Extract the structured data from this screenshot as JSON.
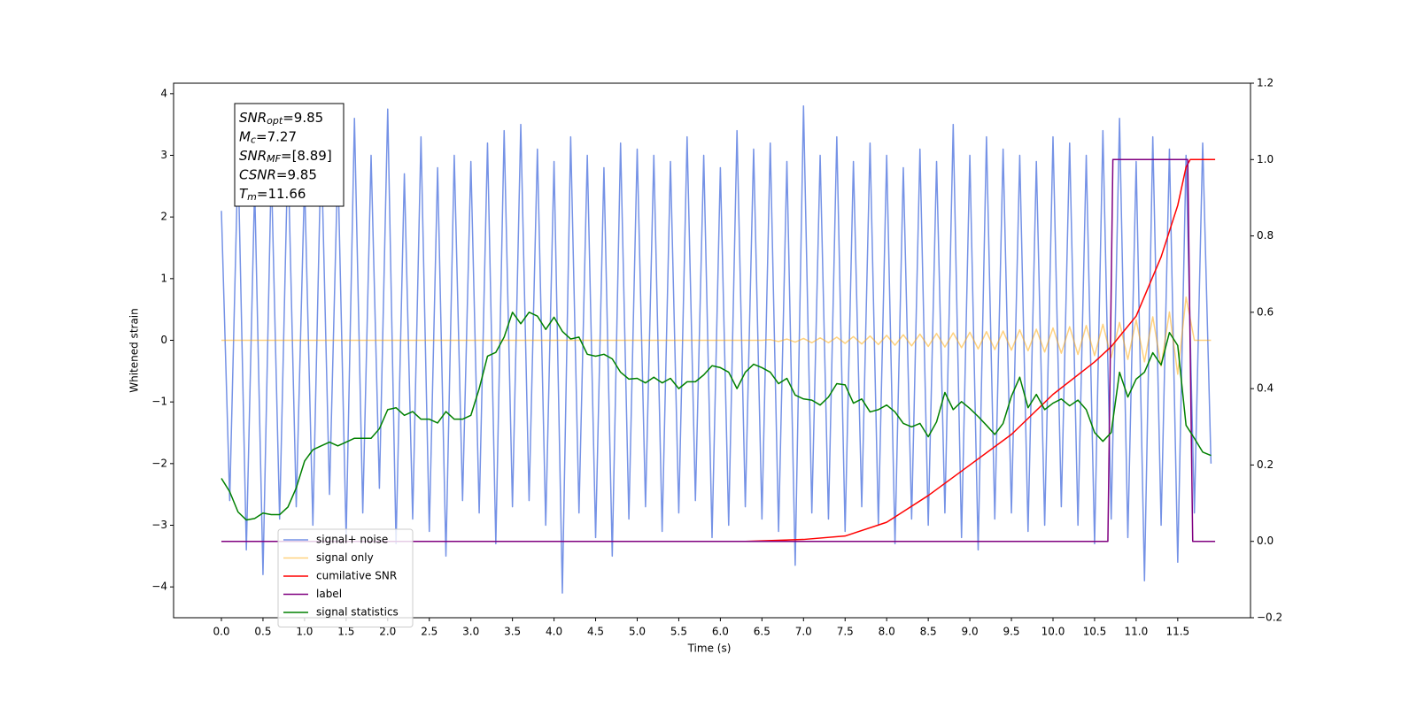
{
  "chart_data": {
    "type": "line",
    "xlabel": "Time (s)",
    "ylabel": "Whitened strain",
    "xlim": [
      -0.575,
      12.375
    ],
    "ylim": [
      -4.5,
      4.17
    ],
    "y2lim": [
      -0.2,
      1.2
    ],
    "xticks": [
      {
        "value": 0,
        "label": "0.0"
      },
      0.5,
      {
        "value": 1,
        "label": "1.0"
      },
      1.5,
      {
        "value": 2,
        "label": "2.0"
      },
      2.5,
      {
        "value": 3,
        "label": "3.0"
      },
      3.5,
      {
        "value": 4,
        "label": "4.0"
      },
      4.5,
      {
        "value": 5,
        "label": "5.0"
      },
      5.5,
      {
        "value": 6,
        "label": "6.0"
      },
      6.5,
      {
        "value": 7,
        "label": "7.0"
      },
      7.5,
      {
        "value": 8,
        "label": "8.0"
      },
      8.5,
      {
        "value": 9,
        "label": "9.0"
      },
      9.5,
      {
        "value": 10,
        "label": "10.0"
      },
      10.5,
      {
        "value": 11,
        "label": "11.0"
      },
      11.5
    ],
    "yticks": [
      {
        "value": -4,
        "label": "−4"
      },
      {
        "value": -3,
        "label": "−3"
      },
      {
        "value": -2,
        "label": "−2"
      },
      {
        "value": -1,
        "label": "−1"
      },
      0,
      1,
      2,
      3,
      4
    ],
    "y2ticks": [
      {
        "value": -0.2,
        "label": "−0.2"
      },
      {
        "value": 0,
        "label": "0.0"
      },
      0.2,
      0.4,
      0.6,
      0.8,
      {
        "value": 1,
        "label": "1.0"
      },
      1.2
    ],
    "grid": false,
    "legend": "lower left",
    "annotation": [
      {
        "symbol": "SNR",
        "sub": "opt",
        "text": "=9.85"
      },
      {
        "symbol": "M",
        "sub": "c",
        "text": "=7.27"
      },
      {
        "symbol": "SNR",
        "sub": "MF",
        "text": "=[8.89]"
      },
      {
        "symbol": "CSNR",
        "text": "=9.85"
      },
      {
        "symbol": "T",
        "sub": "m",
        "text": "=11.66"
      }
    ],
    "x": [
      0,
      0.1,
      0.2,
      0.3,
      0.4,
      0.5,
      0.6,
      0.7,
      0.8,
      0.9,
      1.0,
      1.1,
      1.2,
      1.3,
      1.4,
      1.5,
      1.6,
      1.7,
      1.8,
      1.9,
      2.0,
      2.1,
      2.2,
      2.3,
      2.4,
      2.5,
      2.6,
      2.7,
      2.8,
      2.9,
      3.0,
      3.1,
      3.2,
      3.3,
      3.4,
      3.5,
      3.6,
      3.7,
      3.8,
      3.9,
      4.0,
      4.1,
      4.2,
      4.3,
      4.4,
      4.5,
      4.6,
      4.7,
      4.8,
      4.9,
      5.0,
      5.1,
      5.2,
      5.3,
      5.4,
      5.5,
      5.6,
      5.7,
      5.8,
      5.9,
      6.0,
      6.1,
      6.2,
      6.3,
      6.4,
      6.5,
      6.6,
      6.7,
      6.8,
      6.9,
      7.0,
      7.1,
      7.2,
      7.3,
      7.4,
      7.5,
      7.6,
      7.7,
      7.8,
      7.9,
      8.0,
      8.1,
      8.2,
      8.3,
      8.4,
      8.5,
      8.6,
      8.7,
      8.8,
      8.9,
      9.0,
      9.1,
      9.2,
      9.3,
      9.4,
      9.5,
      9.6,
      9.7,
      9.8,
      9.9,
      10.0,
      10.1,
      10.2,
      10.3,
      10.4,
      10.5,
      10.6,
      10.7,
      10.8,
      10.9,
      11.0,
      11.1,
      11.2,
      11.3,
      11.4,
      11.5,
      11.6,
      11.7,
      11.8,
      11.9
    ],
    "series": [
      {
        "name": "signal+ noise",
        "color": "#7592e6",
        "values": [
          2.1,
          -2.6,
          3.0,
          -3.4,
          2.5,
          -3.8,
          2.8,
          -2.9,
          3.1,
          -2.7,
          2.6,
          -3.0,
          3.2,
          -2.5,
          2.9,
          -3.2,
          3.6,
          -2.8,
          3.0,
          -2.4,
          3.75,
          -3.3,
          2.7,
          -2.9,
          3.3,
          -3.1,
          2.8,
          -3.5,
          3.0,
          -2.6,
          2.9,
          -2.8,
          3.2,
          -3.3,
          3.4,
          -2.7,
          3.5,
          -2.6,
          3.1,
          -3.0,
          2.9,
          -4.1,
          3.3,
          -2.8,
          3.0,
          -3.2,
          2.8,
          -3.5,
          3.2,
          -2.9,
          3.1,
          -2.7,
          3.0,
          -3.1,
          2.9,
          -2.8,
          3.3,
          -2.6,
          3.0,
          -3.2,
          2.8,
          -3.0,
          3.4,
          -2.7,
          3.1,
          -2.9,
          3.2,
          -3.1,
          2.9,
          -3.65,
          3.8,
          -2.8,
          3.0,
          -2.9,
          3.3,
          -3.1,
          2.9,
          -2.7,
          3.2,
          -3.0,
          3.0,
          -3.3,
          2.8,
          -2.9,
          3.1,
          -3.0,
          2.9,
          -2.8,
          3.5,
          -3.2,
          3.0,
          -3.4,
          3.3,
          -2.9,
          3.1,
          -2.8,
          3.0,
          -3.1,
          2.9,
          -3.0,
          3.3,
          -2.7,
          3.2,
          -3.0,
          3.0,
          -3.3,
          3.4,
          -2.9,
          3.6,
          -3.2,
          2.9,
          -3.9,
          3.3,
          -3.0,
          3.1,
          -3.6,
          3.0,
          -2.8,
          3.2,
          -2.0
        ]
      },
      {
        "name": "signal only",
        "color": "orange",
        "alpha": 0.5,
        "values": [
          0,
          0,
          0,
          0,
          0,
          0,
          0,
          0,
          0,
          0,
          0,
          0,
          0,
          0,
          0,
          0,
          0,
          0,
          0,
          0,
          0,
          0,
          0,
          0,
          0,
          0,
          0,
          0,
          0,
          0,
          0,
          0,
          0,
          0,
          0,
          0,
          0,
          0,
          0,
          0,
          0,
          0,
          0,
          0,
          0,
          0,
          0,
          0,
          0,
          0,
          0,
          0,
          0,
          0,
          0,
          0,
          0,
          0,
          0,
          0,
          0,
          0,
          0,
          0,
          0,
          0,
          0.01,
          -0.02,
          0.02,
          -0.03,
          0.03,
          -0.04,
          0.04,
          -0.04,
          0.05,
          -0.05,
          0.06,
          -0.06,
          0.07,
          -0.07,
          0.08,
          -0.08,
          0.09,
          -0.09,
          0.1,
          -0.1,
          0.11,
          -0.11,
          0.12,
          -0.12,
          0.13,
          -0.14,
          0.14,
          -0.15,
          0.15,
          -0.16,
          0.17,
          -0.17,
          0.18,
          -0.19,
          0.2,
          -0.21,
          0.22,
          -0.23,
          0.24,
          -0.25,
          0.26,
          -0.28,
          0.29,
          -0.31,
          0.33,
          -0.35,
          0.38,
          -0.42,
          0.46,
          -0.55,
          0.7,
          0,
          0,
          0
        ]
      },
      {
        "name": "cumilative SNR",
        "color": "red",
        "axis": "y2",
        "x": [
          0,
          6.3,
          7.0,
          7.5,
          8.0,
          8.5,
          9.0,
          9.5,
          10.0,
          10.5,
          10.7,
          11.0,
          11.3,
          11.5,
          11.6,
          11.65,
          11.95
        ],
        "values": [
          0,
          0,
          0.005,
          0.014,
          0.05,
          0.12,
          0.2,
          0.28,
          0.385,
          0.47,
          0.51,
          0.59,
          0.745,
          0.88,
          0.98,
          1.0,
          1.0
        ]
      },
      {
        "name": "label",
        "color": "purple",
        "axis": "y2",
        "x": [
          0,
          10.66,
          10.72,
          11.62,
          11.68,
          11.95
        ],
        "values": [
          0,
          0,
          1,
          1,
          0,
          0
        ]
      },
      {
        "name": "signal statistics",
        "color": "green",
        "axis": "y2",
        "values": [
          0.165,
          0.13,
          0.077,
          0.056,
          0.06,
          0.074,
          0.07,
          0.07,
          0.09,
          0.14,
          0.21,
          0.24,
          0.25,
          0.26,
          0.25,
          0.26,
          0.27,
          0.27,
          0.27,
          0.295,
          0.345,
          0.35,
          0.33,
          0.34,
          0.32,
          0.32,
          0.31,
          0.34,
          0.32,
          0.32,
          0.33,
          0.4,
          0.485,
          0.495,
          0.535,
          0.6,
          0.57,
          0.6,
          0.59,
          0.555,
          0.587,
          0.55,
          0.53,
          0.535,
          0.49,
          0.485,
          0.49,
          0.478,
          0.443,
          0.425,
          0.427,
          0.415,
          0.43,
          0.415,
          0.427,
          0.4,
          0.418,
          0.418,
          0.436,
          0.46,
          0.455,
          0.443,
          0.4,
          0.443,
          0.464,
          0.455,
          0.443,
          0.413,
          0.427,
          0.383,
          0.373,
          0.37,
          0.357,
          0.378,
          0.413,
          0.41,
          0.362,
          0.373,
          0.339,
          0.345,
          0.357,
          0.339,
          0.309,
          0.3,
          0.309,
          0.274,
          0.313,
          0.39,
          0.345,
          0.366,
          0.348,
          0.327,
          0.304,
          0.28,
          0.309,
          0.38,
          0.43,
          0.35,
          0.385,
          0.345,
          0.362,
          0.373,
          0.355,
          0.37,
          0.345,
          0.285,
          0.262,
          0.285,
          0.443,
          0.378,
          0.425,
          0.443,
          0.494,
          0.462,
          0.547,
          0.513,
          0.304,
          0.27,
          0.234,
          0.225
        ]
      }
    ]
  }
}
